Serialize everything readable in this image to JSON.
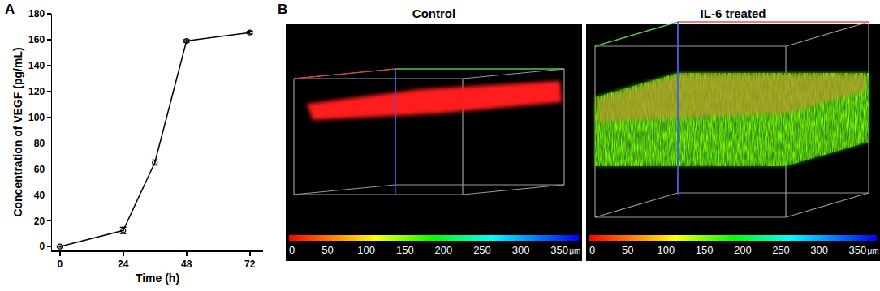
{
  "chart_data": {
    "type": "line",
    "panel_label": "A",
    "x_label": "Time (h)",
    "y_label": "Concentration of VEGF (pg/mL)",
    "x": [
      0,
      24,
      36,
      48,
      72
    ],
    "values": [
      0,
      12.5,
      65,
      159,
      165.5
    ],
    "errors": [
      0.5,
      2.5,
      2,
      1,
      1
    ],
    "xlim": [
      -3,
      77
    ],
    "xticks": [
      0,
      24,
      48,
      72
    ],
    "ylim": [
      -3,
      180
    ],
    "yticks": [
      0,
      20,
      40,
      60,
      80,
      100,
      120,
      140,
      160,
      180
    ],
    "color": "#000000",
    "marker": "circle-open",
    "grid": false
  },
  "panel_b": {
    "panel_label": "B",
    "images": [
      {
        "title": "Control"
      },
      {
        "title": "IL-6 treated"
      }
    ],
    "colorbar": {
      "range": [
        0,
        375
      ],
      "ticks": [
        0,
        50,
        100,
        150,
        200,
        250,
        300,
        350
      ],
      "unit": "μm"
    }
  }
}
